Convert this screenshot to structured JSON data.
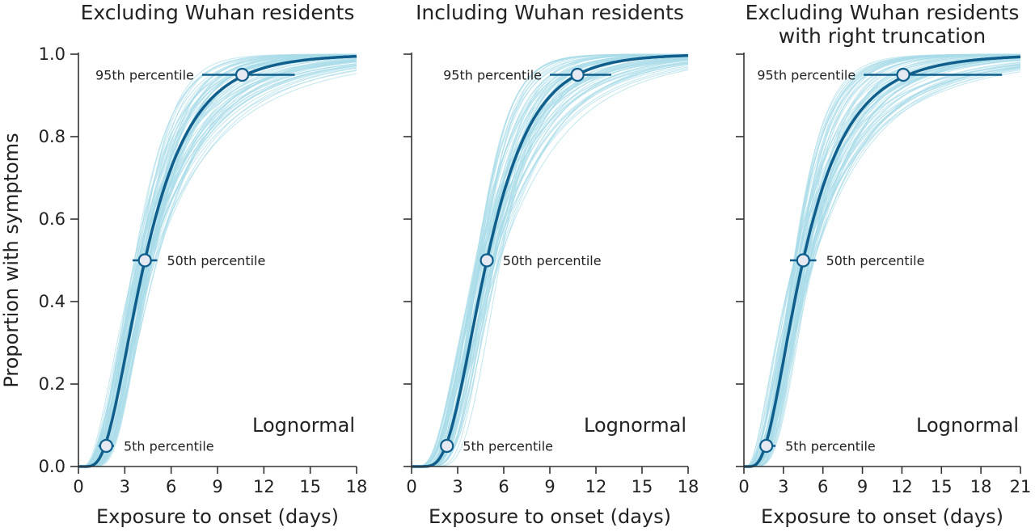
{
  "chart_data": [
    {
      "type": "line",
      "title": [
        "Excluding Wuhan residents"
      ],
      "xlabel": "Exposure to onset (days)",
      "ylabel": "Proportion with symptoms",
      "xlim": [
        0,
        18
      ],
      "ylim": [
        0,
        1.0
      ],
      "xticks": [
        0,
        3,
        6,
        9,
        12,
        15,
        18
      ],
      "yticks": [
        "0.0",
        "0.2",
        "0.4",
        "0.6",
        "0.8",
        "1.0"
      ],
      "distribution_label": "Lognormal",
      "series": [
        {
          "lognormal_median": 4.3,
          "lognormal_sigma": 0.56
        }
      ],
      "percentiles": [
        {
          "label": "5th percentile",
          "x": 1.8,
          "y": 0.05,
          "ci": [
            1.3,
            2.3
          ],
          "label_side": "right"
        },
        {
          "label": "50th percentile",
          "x": 4.3,
          "y": 0.5,
          "ci": [
            3.5,
            5.1
          ],
          "label_side": "right"
        },
        {
          "label": "95th percentile",
          "x": 10.6,
          "y": 0.95,
          "ci": [
            8.0,
            14.0
          ],
          "label_side": "left"
        }
      ],
      "accent_color": "#0f5e8c",
      "sample_color": "#a8dbe8"
    },
    {
      "type": "line",
      "title": [
        "Including Wuhan residents"
      ],
      "xlabel": "Exposure to onset (days)",
      "xlim": [
        0,
        18
      ],
      "ylim": [
        0,
        1.0
      ],
      "xticks": [
        0,
        3,
        6,
        9,
        12,
        15,
        18
      ],
      "distribution_label": "Lognormal",
      "series": [
        {
          "lognormal_median": 4.9,
          "lognormal_sigma": 0.48
        }
      ],
      "percentiles": [
        {
          "label": "5th percentile",
          "x": 2.3,
          "y": 0.05,
          "ci": [
            2.0,
            2.7
          ],
          "label_side": "right"
        },
        {
          "label": "50th percentile",
          "x": 4.9,
          "y": 0.5,
          "ci": [
            4.5,
            5.3
          ],
          "label_side": "right"
        },
        {
          "label": "95th percentile",
          "x": 10.8,
          "y": 0.95,
          "ci": [
            9.0,
            13.0
          ],
          "label_side": "left"
        }
      ],
      "accent_color": "#0f5e8c",
      "sample_color": "#a8dbe8"
    },
    {
      "type": "line",
      "title": [
        "Excluding Wuhan residents",
        "with right truncation"
      ],
      "xlabel": "Exposure to onset (days)",
      "xlim": [
        0,
        21
      ],
      "ylim": [
        0,
        1.0
      ],
      "xticks": [
        0,
        3,
        6,
        9,
        12,
        15,
        18,
        21
      ],
      "distribution_label": "Lognormal",
      "series": [
        {
          "lognormal_median": 4.5,
          "lognormal_sigma": 0.62
        }
      ],
      "percentiles": [
        {
          "label": "5th percentile",
          "x": 1.7,
          "y": 0.05,
          "ci": [
            1.2,
            2.4
          ],
          "label_side": "right"
        },
        {
          "label": "50th percentile",
          "x": 4.5,
          "y": 0.5,
          "ci": [
            3.5,
            5.5
          ],
          "label_side": "right"
        },
        {
          "label": "95th percentile",
          "x": 12.1,
          "y": 0.95,
          "ci": [
            9.1,
            19.6
          ],
          "label_side": "left"
        }
      ],
      "accent_color": "#0f5e8c",
      "sample_color": "#a8dbe8"
    }
  ]
}
